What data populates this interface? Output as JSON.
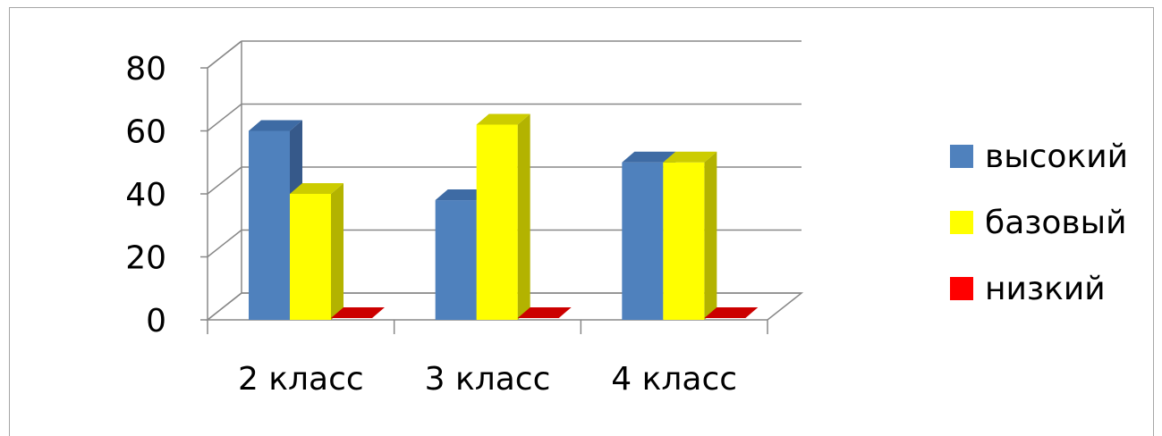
{
  "chart_data": {
    "type": "bar",
    "categories": [
      "2 класс",
      "3 класс",
      "4 класс"
    ],
    "series": [
      {
        "name": "высокий",
        "values": [
          60,
          38,
          50
        ],
        "color": "#4f81bd",
        "side_color": "#36598a",
        "top_color": "#3e6ba4"
      },
      {
        "name": "базовый",
        "values": [
          40,
          62,
          50
        ],
        "color": "#ffff00",
        "side_color": "#b3b300",
        "top_color": "#cccc00"
      },
      {
        "name": "низкий",
        "values": [
          0,
          0,
          0
        ],
        "color": "#ff0000",
        "side_color": "#b30000",
        "top_color": "#cc0000"
      }
    ],
    "y_ticks": [
      "0",
      "20",
      "40",
      "60",
      "80"
    ],
    "ylim": [
      0,
      80
    ],
    "grid": true,
    "legend_position": "right",
    "title": "",
    "xlabel": "",
    "ylabel": ""
  }
}
